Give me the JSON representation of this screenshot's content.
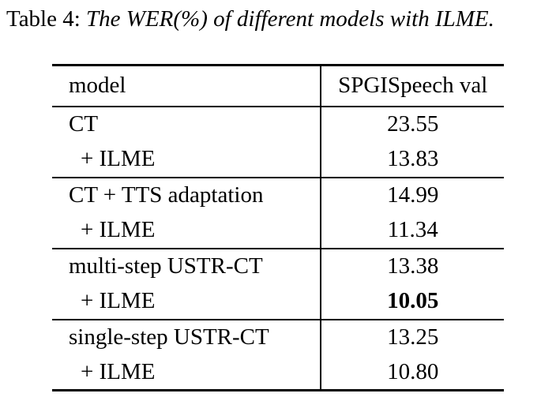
{
  "caption": {
    "prefix": "Table 4: ",
    "text": "The WER(%) of different models with ILME."
  },
  "table": {
    "columns": [
      "model",
      "SPGISpeech val"
    ],
    "groups": [
      {
        "rows": [
          {
            "model": "CT",
            "value": "23.55",
            "indent": false,
            "bold": false
          },
          {
            "model": "+ ILME",
            "value": "13.83",
            "indent": true,
            "bold": false
          }
        ]
      },
      {
        "rows": [
          {
            "model": "CT + TTS adaptation",
            "value": "14.99",
            "indent": false,
            "bold": false
          },
          {
            "model": "+ ILME",
            "value": "11.34",
            "indent": true,
            "bold": false
          }
        ]
      },
      {
        "rows": [
          {
            "model": "multi-step USTR-CT",
            "value": "13.38",
            "indent": false,
            "bold": false
          },
          {
            "model": "+ ILME",
            "value": "10.05",
            "indent": true,
            "bold": true
          }
        ]
      },
      {
        "rows": [
          {
            "model": "single-step USTR-CT",
            "value": "13.25",
            "indent": false,
            "bold": false
          },
          {
            "model": "+ ILME",
            "value": "10.80",
            "indent": true,
            "bold": false
          }
        ]
      }
    ]
  },
  "colors": {
    "text": "#000000",
    "background": "#ffffff",
    "rule": "#000000"
  }
}
